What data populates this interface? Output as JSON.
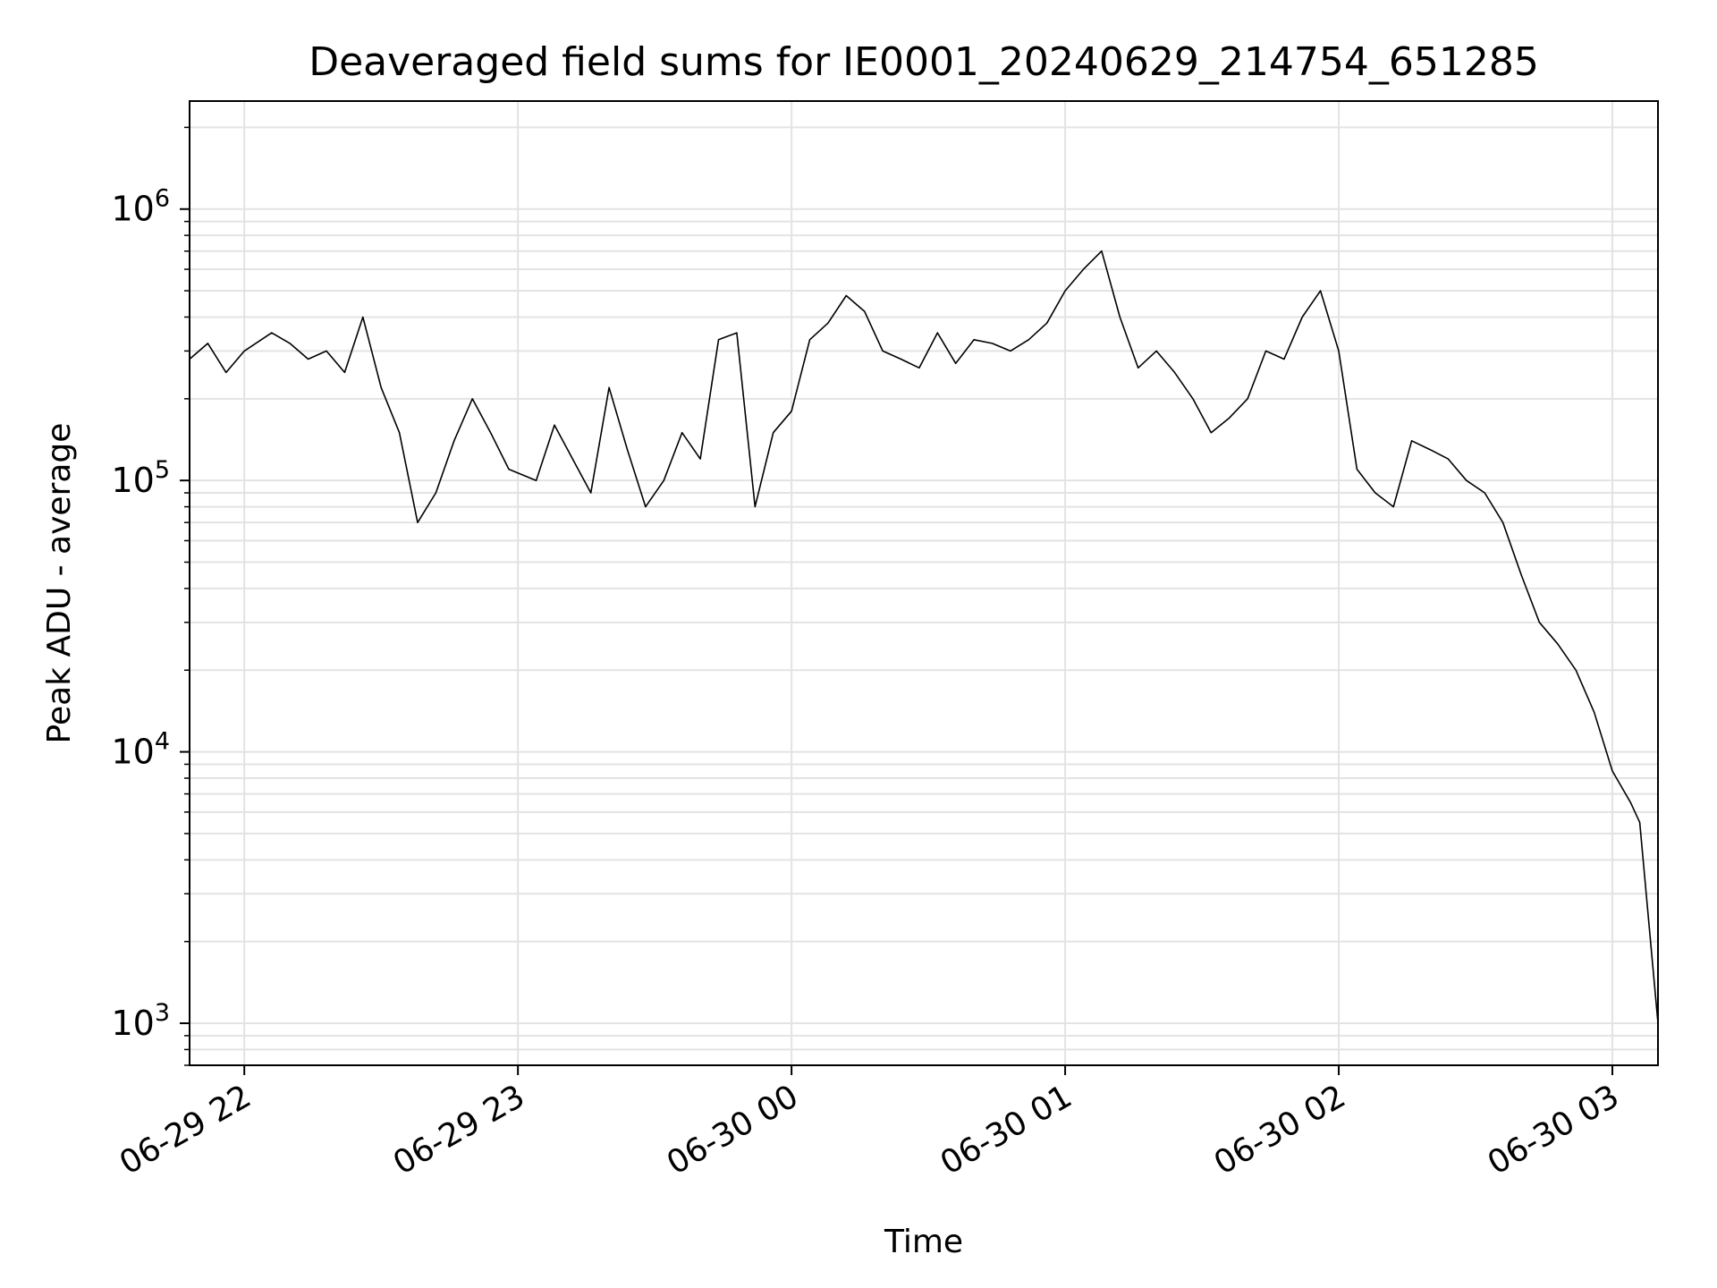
{
  "chart_data": {
    "type": "line",
    "title": "Deaveraged field sums for IE0001_20240629_214754_651285",
    "xlabel": "Time",
    "ylabel": "Peak ADU - average",
    "x_axis": {
      "kind": "datetime",
      "range": [
        "2024-06-29 21:48",
        "2024-06-30 03:10"
      ],
      "ticks": [
        {
          "value": "2024-06-29 22:00",
          "label": "06-29 22"
        },
        {
          "value": "2024-06-29 23:00",
          "label": "06-29 23"
        },
        {
          "value": "2024-06-30 00:00",
          "label": "06-30 00"
        },
        {
          "value": "2024-06-30 01:00",
          "label": "06-30 01"
        },
        {
          "value": "2024-06-30 02:00",
          "label": "06-30 02"
        },
        {
          "value": "2024-06-30 03:00",
          "label": "06-30 03"
        }
      ]
    },
    "y_axis": {
      "scale": "log",
      "range": [
        700,
        2500000
      ],
      "ticks": [
        {
          "value": 1000,
          "base": "10",
          "exp": "3"
        },
        {
          "value": 10000,
          "base": "10",
          "exp": "4"
        },
        {
          "value": 100000,
          "base": "10",
          "exp": "5"
        },
        {
          "value": 1000000,
          "base": "10",
          "exp": "6"
        }
      ]
    },
    "grid": true,
    "line_color": "#000000",
    "series": [
      {
        "x": [
          "2024-06-29 21:48",
          "2024-06-29 21:52",
          "2024-06-29 21:56",
          "2024-06-29 22:00",
          "2024-06-29 22:06",
          "2024-06-29 22:10",
          "2024-06-29 22:14",
          "2024-06-29 22:18",
          "2024-06-29 22:22",
          "2024-06-29 22:26",
          "2024-06-29 22:30",
          "2024-06-29 22:34",
          "2024-06-29 22:38",
          "2024-06-29 22:42",
          "2024-06-29 22:46",
          "2024-06-29 22:50",
          "2024-06-29 22:54",
          "2024-06-29 22:58",
          "2024-06-29 23:04",
          "2024-06-29 23:08",
          "2024-06-29 23:12",
          "2024-06-29 23:16",
          "2024-06-29 23:20",
          "2024-06-29 23:24",
          "2024-06-29 23:28",
          "2024-06-29 23:32",
          "2024-06-29 23:36",
          "2024-06-29 23:40",
          "2024-06-29 23:44",
          "2024-06-29 23:48",
          "2024-06-29 23:52",
          "2024-06-29 23:56",
          "2024-06-30 00:00",
          "2024-06-30 00:04",
          "2024-06-30 00:08",
          "2024-06-30 00:12",
          "2024-06-30 00:16",
          "2024-06-30 00:20",
          "2024-06-30 00:24",
          "2024-06-30 00:28",
          "2024-06-30 00:32",
          "2024-06-30 00:36",
          "2024-06-30 00:40",
          "2024-06-30 00:44",
          "2024-06-30 00:48",
          "2024-06-30 00:52",
          "2024-06-30 00:56",
          "2024-06-30 01:00",
          "2024-06-30 01:04",
          "2024-06-30 01:08",
          "2024-06-30 01:12",
          "2024-06-30 01:16",
          "2024-06-30 01:20",
          "2024-06-30 01:24",
          "2024-06-30 01:28",
          "2024-06-30 01:32",
          "2024-06-30 01:36",
          "2024-06-30 01:40",
          "2024-06-30 01:44",
          "2024-06-30 01:48",
          "2024-06-30 01:52",
          "2024-06-30 01:56",
          "2024-06-30 02:00",
          "2024-06-30 02:04",
          "2024-06-30 02:08",
          "2024-06-30 02:12",
          "2024-06-30 02:16",
          "2024-06-30 02:20",
          "2024-06-30 02:24",
          "2024-06-30 02:28",
          "2024-06-30 02:32",
          "2024-06-30 02:36",
          "2024-06-30 02:40",
          "2024-06-30 02:44",
          "2024-06-30 02:48",
          "2024-06-30 02:52",
          "2024-06-30 02:56",
          "2024-06-30 03:00",
          "2024-06-30 03:04",
          "2024-06-30 03:06",
          "2024-06-30 03:10"
        ],
        "y": [
          280000,
          320000,
          250000,
          300000,
          350000,
          320000,
          280000,
          300000,
          250000,
          400000,
          220000,
          150000,
          70000,
          90000,
          140000,
          200000,
          150000,
          110000,
          100000,
          160000,
          120000,
          90000,
          220000,
          130000,
          80000,
          100000,
          150000,
          120000,
          330000,
          350000,
          80000,
          150000,
          180000,
          330000,
          380000,
          480000,
          420000,
          300000,
          280000,
          260000,
          350000,
          270000,
          330000,
          320000,
          300000,
          330000,
          380000,
          500000,
          600000,
          700000,
          400000,
          260000,
          300000,
          250000,
          200000,
          150000,
          170000,
          200000,
          300000,
          280000,
          400000,
          500000,
          300000,
          110000,
          90000,
          80000,
          140000,
          130000,
          120000,
          100000,
          90000,
          70000,
          45000,
          30000,
          25000,
          20000,
          14000,
          8500,
          6500,
          5500,
          1000
        ]
      }
    ]
  }
}
